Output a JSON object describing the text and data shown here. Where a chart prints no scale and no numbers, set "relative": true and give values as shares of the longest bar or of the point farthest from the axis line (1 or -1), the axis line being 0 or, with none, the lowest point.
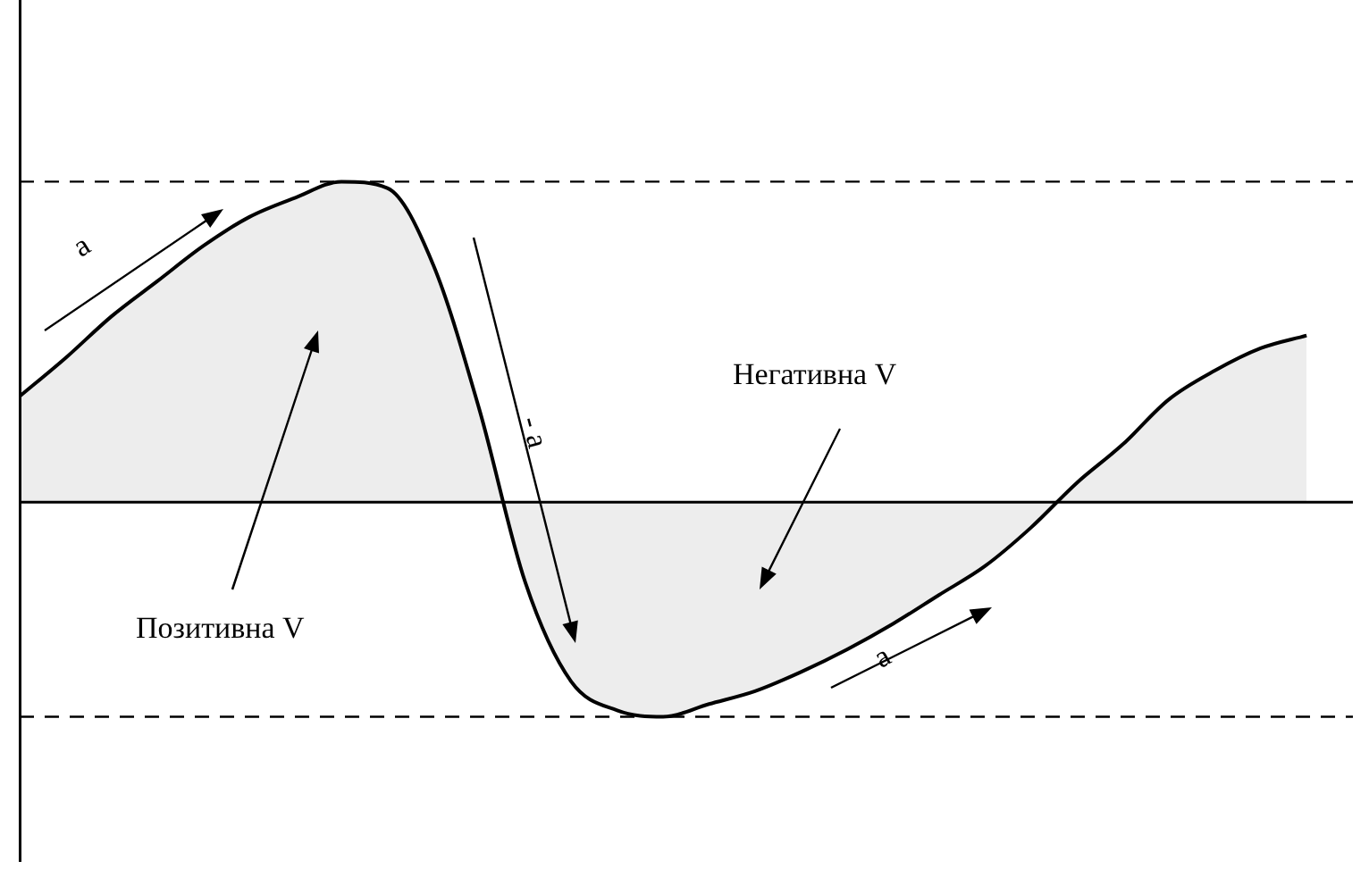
{
  "chart_data": {
    "type": "area",
    "relative": true,
    "categories": [
      null,
      null,
      null,
      null,
      null,
      null,
      null,
      null,
      null,
      null,
      null,
      null,
      null,
      null,
      null,
      null,
      null,
      null,
      null,
      null,
      null,
      null,
      null,
      null,
      null,
      null,
      null,
      null,
      null
    ],
    "values": [
      0.33,
      0.45,
      0.58,
      0.69,
      0.8,
      0.89,
      0.95,
      1,
      0.98,
      0.74,
      0.29,
      -0.25,
      -0.56,
      -0.65,
      -0.67,
      -0.63,
      -0.59,
      -0.53,
      -0.46,
      -0.38,
      -0.29,
      -0.2,
      -0.08,
      0.06,
      0.18,
      0.32,
      0.41,
      0.48,
      0.52
    ],
    "color": "#000000",
    "ref_lines": [
      {
        "axis": "y",
        "value": 1,
        "line_style": "dashed",
        "color": "#000000"
      },
      {
        "axis": "y",
        "value": -0.67,
        "line_style": "dashed",
        "color": "#000000"
      }
    ],
    "annotations": [
      "a",
      "- a",
      "Позитивна V",
      "Негативна V",
      "a"
    ],
    "legend": false
  }
}
